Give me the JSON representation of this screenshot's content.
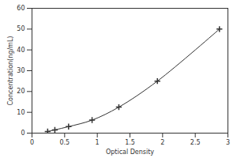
{
  "chart_data": {
    "type": "line",
    "x_label": "Optical Density",
    "y_label": "Concentration(ng/mL)",
    "x": [
      0.24,
      0.35,
      0.56,
      0.92,
      1.33,
      1.92,
      2.87
    ],
    "values": [
      0.78,
      1.56,
      3.12,
      6.25,
      12.5,
      25,
      50
    ],
    "color": "#333333",
    "marker": "plus",
    "line_style": "solid",
    "xlim": [
      0,
      3
    ],
    "xticks": [
      0,
      0.5,
      1,
      1.5,
      2,
      2.5,
      3
    ],
    "ylim": [
      0,
      60
    ],
    "yticks": [
      0,
      10,
      20,
      30,
      40,
      50,
      60
    ],
    "grid": false
  }
}
